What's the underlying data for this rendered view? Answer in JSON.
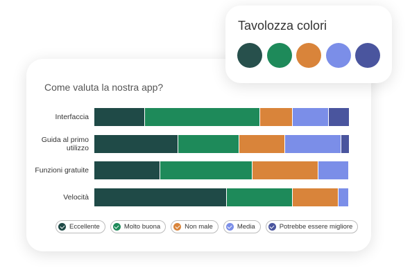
{
  "chart_data": {
    "type": "stacked-bar",
    "title": "Come valuta la nostra app?",
    "categories": [
      "Interfaccia",
      "Guida al primo utilizzo",
      "Funzioni gratuite",
      "Velocità"
    ],
    "xlim": [
      0,
      100
    ],
    "series": [
      {
        "name": "Eccellente",
        "color": "#1f4a47",
        "values": [
          20,
          33,
          26,
          52
        ]
      },
      {
        "name": "Molto buona",
        "color": "#1e8a5a",
        "values": [
          45,
          24,
          36,
          26
        ]
      },
      {
        "name": "Non male",
        "color": "#d9843a",
        "values": [
          13,
          18,
          26,
          18
        ]
      },
      {
        "name": "Media",
        "color": "#7b8ee8",
        "values": [
          14,
          22,
          12,
          4
        ]
      },
      {
        "name": "Potrebbe essere migliore",
        "color": "#4a559e",
        "values": [
          8,
          3,
          0,
          0
        ]
      }
    ]
  },
  "palette": {
    "title": "Tavolozza colori",
    "colors": [
      "#27504c",
      "#1e8a5a",
      "#d9843a",
      "#7b8ee8",
      "#4a559e"
    ]
  }
}
